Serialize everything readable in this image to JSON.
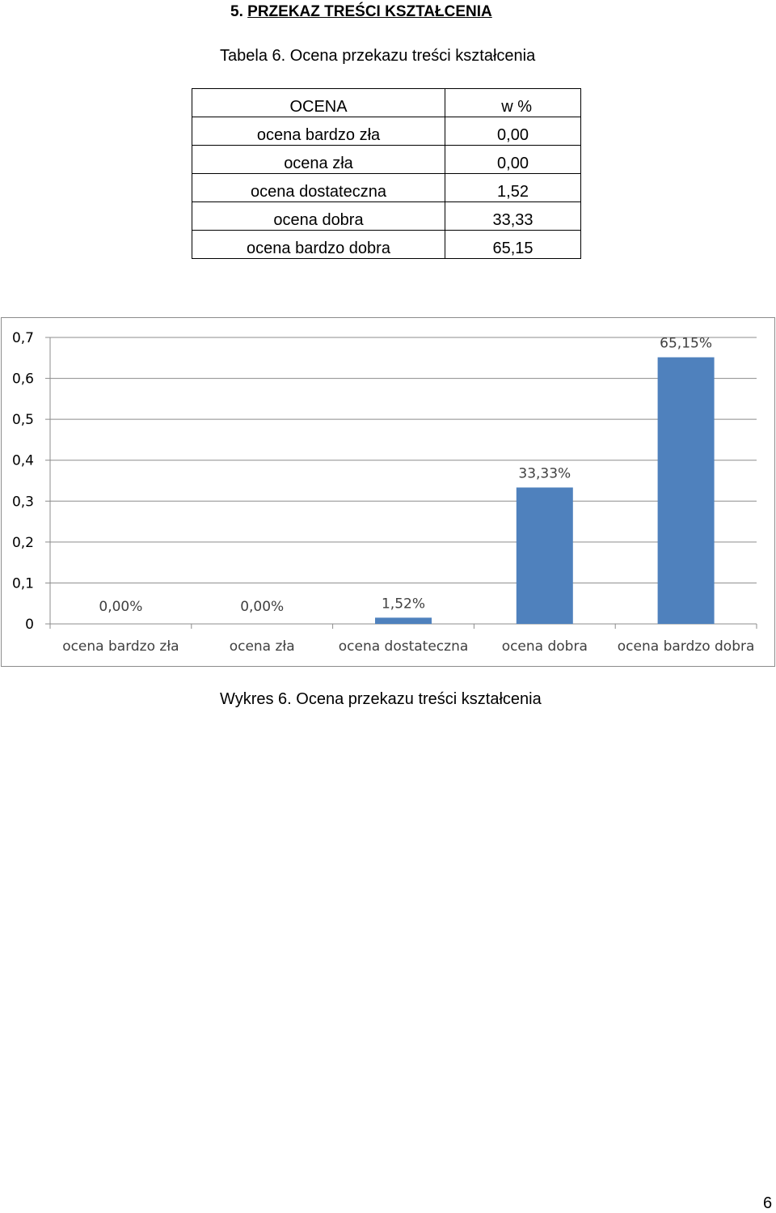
{
  "heading": {
    "number": "5.",
    "text": "PRZEKAZ TREŚCI KSZTAŁCENIA"
  },
  "table_caption": "Tabela 6.  Ocena przekazu treści kształcenia",
  "table": {
    "headers": [
      "OCENA",
      "w  %"
    ],
    "rows": [
      [
        "ocena bardzo zła",
        "0,00"
      ],
      [
        "ocena zła",
        "0,00"
      ],
      [
        "ocena dostateczna",
        "1,52"
      ],
      [
        "ocena dobra",
        "33,33"
      ],
      [
        "ocena bardzo dobra",
        "65,15"
      ]
    ]
  },
  "chart_data": {
    "type": "bar",
    "categories": [
      "ocena bardzo zła",
      "ocena zła",
      "ocena dostateczna",
      "ocena dobra",
      "ocena bardzo dobra"
    ],
    "values": [
      0.0,
      0.0,
      0.0152,
      0.3333,
      0.6515
    ],
    "data_labels": [
      "0,00%",
      "0,00%",
      "1,52%",
      "33,33%",
      "65,15%"
    ],
    "yticks": [
      "0",
      "0,1",
      "0,2",
      "0,3",
      "0,4",
      "0,5",
      "0,6",
      "0,7"
    ],
    "ylim": [
      0,
      0.7
    ],
    "grid": true,
    "bar_color": "#4f81bd",
    "title": "",
    "xlabel": "",
    "ylabel": ""
  },
  "chart_caption": "Wykres 6. Ocena przekazu treści kształcenia",
  "page_number": "6"
}
